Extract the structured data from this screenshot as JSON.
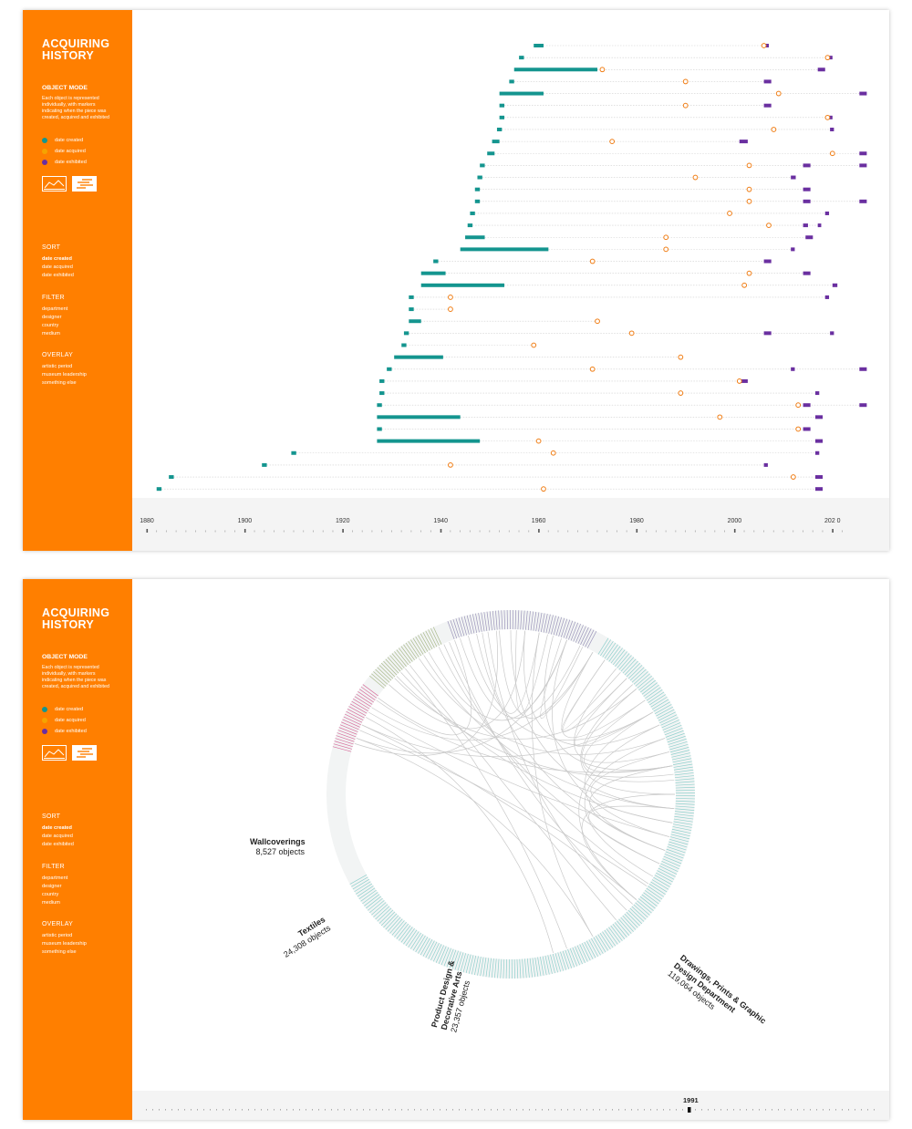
{
  "sidebar": {
    "title": "ACQUIRING HISTORY",
    "object_mode_label": "OBJECT MODE",
    "object_mode_desc": "Each object is represented individually, with markers indicating when the piece was created, acquired and exhibited",
    "legend": [
      {
        "label": "date created",
        "color": "#14958f"
      },
      {
        "label": "date acquired",
        "color": "#f5a300"
      },
      {
        "label": "date exhibited",
        "color": "#6a2fa0"
      }
    ],
    "view_buttons": [
      {
        "icon": "line-chart-icon"
      },
      {
        "icon": "bar-list-icon"
      }
    ],
    "sort": {
      "label": "SORT",
      "options": [
        "date created",
        "date acquired",
        "date exhibited"
      ],
      "active": "date created"
    },
    "filter": {
      "label": "FILTER",
      "options": [
        "department",
        "designer",
        "country",
        "medium"
      ]
    },
    "overlay": {
      "label": "OVERLAY",
      "options": [
        "artistic period",
        "museum leadership",
        "something else"
      ]
    }
  },
  "colors": {
    "sidebar": "#ff7f00",
    "created": "#14958f",
    "acquired": "#f07d14",
    "exhibited": "#6a2fa0",
    "guide": "#cfcfcf"
  },
  "timeline": {
    "ticks": [
      "1880",
      "1900",
      "1920",
      "1940",
      "1960",
      "1980",
      "2000",
      "202 0"
    ],
    "range": [
      1880,
      2022
    ]
  },
  "chart_data": [
    {
      "type": "timeline",
      "x_range": [
        1880,
        2022
      ],
      "objects": [
        {
          "created": [
            1959,
            1961
          ],
          "acquired": 2006,
          "exhibited": [
            [
              2006,
              2007
            ]
          ]
        },
        {
          "created": [
            1956,
            1957
          ],
          "acquired": 2019,
          "exhibited": [
            [
              2019,
              2020
            ]
          ]
        },
        {
          "created": [
            1955,
            1972
          ],
          "acquired": 1973,
          "exhibited": [
            [
              2017,
              2018.5
            ]
          ]
        },
        {
          "created": [
            1954,
            1955
          ],
          "acquired": 1990,
          "exhibited": [
            [
              2006,
              2007.5
            ]
          ]
        },
        {
          "created": [
            1952,
            1961
          ],
          "acquired": 2009,
          "exhibited": [
            [
              2025.5,
              2027
            ]
          ]
        },
        {
          "created": [
            1952,
            1953
          ],
          "acquired": 1990,
          "exhibited": [
            [
              2006,
              2007.5
            ]
          ]
        },
        {
          "created": [
            1952,
            1953
          ],
          "acquired": 2019,
          "exhibited": [
            [
              2019,
              2020
            ]
          ]
        },
        {
          "created": [
            1951.5,
            1952.5
          ],
          "acquired": 2008,
          "exhibited": [
            [
              2019.5,
              2020.3
            ]
          ]
        },
        {
          "created": [
            1950.5,
            1952
          ],
          "acquired": 1975,
          "exhibited": [
            [
              2001,
              2002.7
            ]
          ]
        },
        {
          "created": [
            1949.5,
            1951
          ],
          "acquired": 2020,
          "exhibited": [
            [
              2025.5,
              2027
            ]
          ]
        },
        {
          "created": [
            1948,
            1949
          ],
          "acquired": 2003,
          "exhibited": [
            [
              2014,
              2015.5
            ],
            [
              2025.5,
              2027
            ]
          ]
        },
        {
          "created": [
            1947.5,
            1948.5
          ],
          "acquired": 1992,
          "exhibited": [
            [
              2011.5,
              2012.5
            ]
          ]
        },
        {
          "created": [
            1947,
            1948
          ],
          "acquired": 2003,
          "exhibited": [
            [
              2014,
              2015.5
            ]
          ]
        },
        {
          "created": [
            1947,
            1948
          ],
          "acquired": 2003,
          "exhibited": [
            [
              2014,
              2015.5
            ],
            [
              2025.5,
              2027
            ]
          ]
        },
        {
          "created": [
            1946,
            1947
          ],
          "acquired": 1999,
          "exhibited": [
            [
              2018.5,
              2019.3
            ]
          ]
        },
        {
          "created": [
            1945.5,
            1946.5
          ],
          "acquired": 2007,
          "exhibited": [
            [
              2014,
              2015
            ],
            [
              2017,
              2017.7
            ]
          ]
        },
        {
          "created": [
            1945,
            1949
          ],
          "acquired": 1986,
          "exhibited": [
            [
              2014.5,
              2016
            ]
          ]
        },
        {
          "created": [
            1944,
            1962
          ],
          "acquired": 1986,
          "exhibited": [
            [
              2011.5,
              2012.3
            ]
          ]
        },
        {
          "created": [
            1938.5,
            1939.5
          ],
          "acquired": 1971,
          "exhibited": [
            [
              2006,
              2007.5
            ]
          ]
        },
        {
          "created": [
            1936,
            1941
          ],
          "acquired": 2003,
          "exhibited": [
            [
              2014,
              2015.5
            ]
          ]
        },
        {
          "created": [
            1936,
            1953
          ],
          "acquired": 2002,
          "exhibited": [
            [
              2020,
              2021
            ]
          ]
        },
        {
          "created": [
            1933.5,
            1934.5
          ],
          "acquired": 1942,
          "exhibited": [
            [
              2018.5,
              2019.3
            ]
          ]
        },
        {
          "created": [
            1933.5,
            1934.5
          ],
          "acquired": 1942,
          "exhibited": []
        },
        {
          "created": [
            1933.5,
            1936
          ],
          "acquired": 1972,
          "exhibited": []
        },
        {
          "created": [
            1932.5,
            1933.5
          ],
          "acquired": 1979,
          "exhibited": [
            [
              2006,
              2007.5
            ],
            [
              2019.5,
              2020.3
            ]
          ]
        },
        {
          "created": [
            1932,
            1933
          ],
          "acquired": 1959,
          "exhibited": []
        },
        {
          "created": [
            1930.5,
            1940.5
          ],
          "acquired": 1989,
          "exhibited": []
        },
        {
          "created": [
            1929,
            1930
          ],
          "acquired": 1971,
          "exhibited": [
            [
              2011.5,
              2012.3
            ],
            [
              2025.5,
              2027
            ]
          ]
        },
        {
          "created": [
            1927.5,
            1928.5
          ],
          "acquired": 2001,
          "exhibited": [
            [
              2001,
              2002.7
            ]
          ]
        },
        {
          "created": [
            1927.5,
            1928.5
          ],
          "acquired": 1989,
          "exhibited": [
            [
              2016.5,
              2017.3
            ]
          ]
        },
        {
          "created": [
            1927,
            1928
          ],
          "acquired": 2013,
          "exhibited": [
            [
              2014,
              2015.5
            ],
            [
              2025.5,
              2027
            ]
          ]
        },
        {
          "created": [
            1927,
            1944
          ],
          "acquired": 1997,
          "exhibited": [
            [
              2016.5,
              2018
            ]
          ]
        },
        {
          "created": [
            1927,
            1928
          ],
          "acquired": 2013,
          "exhibited": [
            [
              2014,
              2015.5
            ]
          ]
        },
        {
          "created": [
            1927,
            1948
          ],
          "acquired": 1960,
          "exhibited": [
            [
              2016.5,
              2018
            ]
          ]
        },
        {
          "created": [
            1909.5,
            1910.5
          ],
          "acquired": 1963,
          "exhibited": [
            [
              2016.5,
              2017.3
            ]
          ]
        },
        {
          "created": [
            1903.5,
            1904.5
          ],
          "acquired": 1942,
          "exhibited": [
            [
              2006,
              2006.8
            ]
          ]
        },
        {
          "created": [
            1884.5,
            1885.5
          ],
          "acquired": 2012,
          "exhibited": [
            [
              2016.5,
              2018
            ]
          ]
        },
        {
          "created": [
            1882,
            1883
          ],
          "acquired": 1961,
          "exhibited": [
            [
              2016.5,
              2018
            ]
          ]
        }
      ]
    },
    {
      "type": "chord",
      "segments": [
        {
          "name": "Wallcoverings",
          "count": "8,527 objects",
          "color": "#d45a8f"
        },
        {
          "name": "Textiles",
          "count": "24,308 objects",
          "color": "#9eb07a"
        },
        {
          "name": "Product Design & Decorative Arts",
          "count": "23,357 objects",
          "color": "#8e86b0"
        },
        {
          "name": "Drawings, Prints & Graphic Design Department",
          "count": "119,064 objects",
          "color": "#7fcac6"
        }
      ],
      "selected_year": "1991"
    }
  ]
}
